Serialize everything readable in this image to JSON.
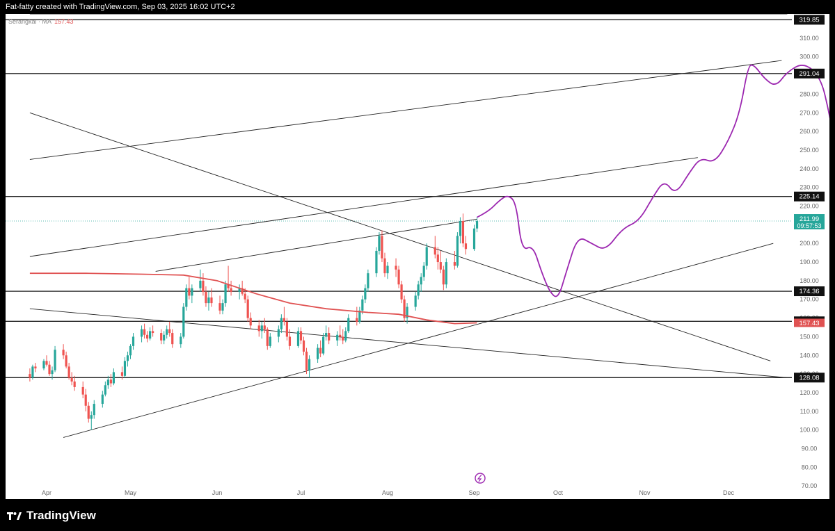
{
  "header": {
    "attribution": "Fat-fatty created with TradingView.com, Sep 03, 2025 16:02 UTC+2"
  },
  "legend": {
    "label": "Serangkai · MA",
    "value": "157.43"
  },
  "brand": {
    "name": "TradingView"
  },
  "colors": {
    "up": "#26a69a",
    "down": "#ef5350",
    "ma": "#e05252",
    "projection": "#9c27b0",
    "line": "#222222",
    "price_label": "#26a69a"
  },
  "chart_data": {
    "type": "candlestick",
    "x_tick_labels": [
      "Apr",
      "May",
      "Jun",
      "Jul",
      "Aug",
      "Sep",
      "Oct",
      "Nov",
      "Dec"
    ],
    "y_tick_labels": [
      "70.00",
      "80.00",
      "90.00",
      "100.00",
      "110.00",
      "120.00",
      "130.00",
      "140.00",
      "150.00",
      "160.00",
      "170.00",
      "180.00",
      "190.00",
      "200.00",
      "210.00",
      "220.00",
      "230.00",
      "240.00",
      "250.00",
      "260.00",
      "270.00",
      "280.00",
      "290.00",
      "300.00",
      "310.00"
    ],
    "ylim": [
      63,
      323
    ],
    "horizontal_levels": [
      {
        "price": 319.85,
        "label": "319.85"
      },
      {
        "price": 291.04,
        "label": "291.04"
      },
      {
        "price": 225.14,
        "label": "225.14"
      },
      {
        "price": 174.36,
        "label": "174.36"
      },
      {
        "price": 158.25,
        "label": "158.25"
      },
      {
        "price": 128.08,
        "label": "128.08"
      }
    ],
    "last_price": {
      "value": "211.99",
      "countdown": "09:57:53"
    },
    "ma": {
      "name": "MA",
      "value": "157.43"
    },
    "trendlines": [
      {
        "from": [
          "2025-03-26",
          245
        ],
        "to": [
          "2025-12-20",
          298
        ]
      },
      {
        "from": [
          "2025-03-26",
          193
        ],
        "to": [
          "2025-11-20",
          246
        ]
      },
      {
        "from": [
          "2025-05-10",
          185
        ],
        "to": [
          "2025-09-02",
          213
        ]
      },
      {
        "from": [
          "2025-04-07",
          96
        ],
        "to": [
          "2025-12-17",
          200
        ]
      },
      {
        "from": [
          "2025-03-26",
          165
        ],
        "to": [
          "2025-12-22",
          128
        ]
      },
      {
        "from": [
          "2025-03-26",
          270
        ],
        "to": [
          "2025-12-16",
          137
        ]
      },
      {
        "from": [
          "2025-03-26",
          323
        ],
        "to": [
          "2025-12-22",
          323
        ]
      }
    ],
    "ma_series": [
      [
        "2025-03-26",
        184
      ],
      [
        "2025-04-15",
        184
      ],
      [
        "2025-05-05",
        183.5
      ],
      [
        "2025-05-20",
        183
      ],
      [
        "2025-06-01",
        180
      ],
      [
        "2025-06-15",
        173
      ],
      [
        "2025-06-27",
        168
      ],
      [
        "2025-07-10",
        165
      ],
      [
        "2025-07-25",
        163
      ],
      [
        "2025-08-05",
        162
      ],
      [
        "2025-08-15",
        159
      ],
      [
        "2025-08-25",
        157
      ],
      [
        "2025-09-02",
        157.43
      ]
    ],
    "projection": [
      [
        "2025-09-02",
        214
      ],
      [
        "2025-09-06",
        217
      ],
      [
        "2025-09-10",
        223
      ],
      [
        "2025-09-13",
        226
      ],
      [
        "2025-09-16",
        222
      ],
      [
        "2025-09-18",
        196
      ],
      [
        "2025-09-22",
        199
      ],
      [
        "2025-09-25",
        185
      ],
      [
        "2025-09-28",
        174
      ],
      [
        "2025-10-01",
        170
      ],
      [
        "2025-10-04",
        185
      ],
      [
        "2025-10-08",
        204
      ],
      [
        "2025-10-13",
        200
      ],
      [
        "2025-10-18",
        196
      ],
      [
        "2025-10-24",
        208
      ],
      [
        "2025-10-30",
        212
      ],
      [
        "2025-11-04",
        225
      ],
      [
        "2025-11-08",
        234
      ],
      [
        "2025-11-12",
        226
      ],
      [
        "2025-11-17",
        238
      ],
      [
        "2025-11-21",
        246
      ],
      [
        "2025-11-26",
        243
      ],
      [
        "2025-12-01",
        255
      ],
      [
        "2025-12-05",
        270
      ],
      [
        "2025-12-08",
        295
      ],
      [
        "2025-12-10",
        296
      ],
      [
        "2025-12-14",
        288
      ],
      [
        "2025-12-18",
        284
      ],
      [
        "2025-12-22",
        292
      ],
      [
        "2025-12-28",
        297
      ],
      [
        "2026-01-03",
        289
      ],
      [
        "2026-01-06",
        270
      ],
      [
        "2026-01-08",
        253
      ]
    ],
    "candles": [
      [
        "2025-03-26",
        130,
        133,
        126,
        128
      ],
      [
        "2025-03-27",
        128,
        135,
        127,
        134
      ],
      [
        "2025-03-28",
        134,
        136,
        131,
        133
      ],
      [
        "2025-03-31",
        133,
        138,
        132,
        137
      ],
      [
        "2025-04-01",
        137,
        140,
        134,
        135
      ],
      [
        "2025-04-02",
        135,
        137,
        129,
        130
      ],
      [
        "2025-04-03",
        130,
        134,
        127,
        132
      ],
      [
        "2025-04-04",
        132,
        145,
        131,
        143
      ],
      [
        "2025-04-07",
        143,
        146,
        138,
        140
      ],
      [
        "2025-04-08",
        140,
        142,
        133,
        134
      ],
      [
        "2025-04-09",
        134,
        136,
        127,
        128
      ],
      [
        "2025-04-10",
        128,
        131,
        124,
        126
      ],
      [
        "2025-04-11",
        126,
        129,
        121,
        123
      ],
      [
        "2025-04-14",
        123,
        126,
        117,
        119
      ],
      [
        "2025-04-15",
        119,
        122,
        110,
        113
      ],
      [
        "2025-04-16",
        113,
        115,
        104,
        106
      ],
      [
        "2025-04-17",
        106,
        110,
        100,
        108
      ],
      [
        "2025-04-18",
        108,
        116,
        106,
        114
      ],
      [
        "2025-04-21",
        114,
        121,
        112,
        119
      ],
      [
        "2025-04-22",
        119,
        126,
        118,
        124
      ],
      [
        "2025-04-23",
        124,
        129,
        122,
        127
      ],
      [
        "2025-04-24",
        127,
        130,
        123,
        125
      ],
      [
        "2025-04-25",
        125,
        133,
        124,
        131
      ],
      [
        "2025-04-28",
        131,
        134,
        127,
        129
      ],
      [
        "2025-04-29",
        129,
        139,
        128,
        137
      ],
      [
        "2025-04-30",
        137,
        142,
        134,
        140
      ],
      [
        "2025-05-01",
        140,
        146,
        138,
        145
      ],
      [
        "2025-05-02",
        145,
        152,
        143,
        150
      ],
      [
        "2025-05-05",
        150,
        156,
        147,
        154
      ],
      [
        "2025-05-06",
        154,
        157,
        149,
        151
      ],
      [
        "2025-05-07",
        151,
        153,
        147,
        149
      ],
      [
        "2025-05-08",
        149,
        155,
        148,
        153
      ],
      [
        "2025-05-09",
        153,
        156,
        150,
        152
      ],
      [
        "2025-05-12",
        152,
        154,
        146,
        148
      ],
      [
        "2025-05-13",
        148,
        153,
        146,
        151
      ],
      [
        "2025-05-14",
        151,
        156,
        149,
        154
      ],
      [
        "2025-05-15",
        154,
        158,
        150,
        152
      ],
      [
        "2025-05-16",
        152,
        154,
        144,
        146
      ],
      [
        "2025-05-19",
        146,
        152,
        144,
        150
      ],
      [
        "2025-05-20",
        150,
        168,
        149,
        166
      ],
      [
        "2025-05-21",
        166,
        178,
        164,
        176
      ],
      [
        "2025-05-22",
        176,
        182,
        170,
        172
      ],
      [
        "2025-05-23",
        172,
        178,
        168,
        176
      ],
      [
        "2025-05-26",
        176,
        186,
        174,
        180
      ],
      [
        "2025-05-27",
        180,
        184,
        172,
        174
      ],
      [
        "2025-05-28",
        174,
        177,
        166,
        168
      ],
      [
        "2025-05-29",
        168,
        174,
        164,
        171
      ],
      [
        "2025-05-30",
        171,
        176,
        166,
        168
      ],
      [
        "2025-06-02",
        168,
        172,
        162,
        164
      ],
      [
        "2025-06-03",
        164,
        170,
        162,
        168
      ],
      [
        "2025-06-04",
        168,
        180,
        166,
        178
      ],
      [
        "2025-06-05",
        178,
        188,
        174,
        176
      ],
      [
        "2025-06-06",
        176,
        180,
        172,
        174
      ],
      [
        "2025-06-09",
        174,
        178,
        170,
        176
      ],
      [
        "2025-06-10",
        176,
        180,
        172,
        173
      ],
      [
        "2025-06-11",
        173,
        176,
        168,
        170
      ],
      [
        "2025-06-12",
        170,
        172,
        158,
        160
      ],
      [
        "2025-06-13",
        160,
        163,
        154,
        156
      ],
      [
        "2025-06-16",
        156,
        159,
        150,
        153
      ],
      [
        "2025-06-17",
        153,
        158,
        149,
        156
      ],
      [
        "2025-06-18",
        156,
        160,
        152,
        154
      ],
      [
        "2025-06-19",
        154,
        155,
        143,
        145
      ],
      [
        "2025-06-20",
        145,
        152,
        144,
        150
      ],
      [
        "2025-06-23",
        150,
        156,
        147,
        154
      ],
      [
        "2025-06-24",
        154,
        162,
        152,
        160
      ],
      [
        "2025-06-25",
        160,
        166,
        156,
        158
      ],
      [
        "2025-06-26",
        158,
        160,
        148,
        150
      ],
      [
        "2025-06-27",
        150,
        154,
        143,
        145
      ],
      [
        "2025-06-30",
        145,
        155,
        144,
        153
      ],
      [
        "2025-07-01",
        153,
        155,
        146,
        148
      ],
      [
        "2025-07-02",
        148,
        150,
        140,
        142
      ],
      [
        "2025-07-03",
        142,
        144,
        130,
        132
      ],
      [
        "2025-07-04",
        132,
        140,
        128,
        138
      ],
      [
        "2025-07-07",
        138,
        146,
        136,
        144
      ],
      [
        "2025-07-08",
        144,
        148,
        139,
        141
      ],
      [
        "2025-07-09",
        141,
        152,
        140,
        150
      ],
      [
        "2025-07-10",
        150,
        156,
        148,
        152
      ],
      [
        "2025-07-11",
        152,
        155,
        146,
        148
      ],
      [
        "2025-07-14",
        148,
        153,
        145,
        151
      ],
      [
        "2025-07-15",
        151,
        156,
        148,
        150
      ],
      [
        "2025-07-16",
        150,
        154,
        146,
        148
      ],
      [
        "2025-07-17",
        148,
        155,
        147,
        153
      ],
      [
        "2025-07-18",
        153,
        162,
        152,
        160
      ],
      [
        "2025-07-21",
        160,
        166,
        156,
        158
      ],
      [
        "2025-07-22",
        158,
        166,
        157,
        164
      ],
      [
        "2025-07-23",
        164,
        172,
        162,
        170
      ],
      [
        "2025-07-24",
        170,
        178,
        168,
        176
      ],
      [
        "2025-07-25",
        176,
        186,
        174,
        184
      ],
      [
        "2025-07-28",
        184,
        198,
        182,
        196
      ],
      [
        "2025-07-29",
        196,
        206,
        194,
        204
      ],
      [
        "2025-07-30",
        204,
        207,
        190,
        192
      ],
      [
        "2025-07-31",
        192,
        195,
        182,
        184
      ],
      [
        "2025-08-01",
        184,
        190,
        181,
        188
      ],
      [
        "2025-08-04",
        188,
        192,
        182,
        186
      ],
      [
        "2025-08-05",
        186,
        188,
        176,
        178
      ],
      [
        "2025-08-06",
        178,
        180,
        168,
        170
      ],
      [
        "2025-08-07",
        170,
        172,
        158,
        160
      ],
      [
        "2025-08-08",
        160,
        168,
        157,
        166
      ],
      [
        "2025-08-11",
        166,
        174,
        164,
        172
      ],
      [
        "2025-08-12",
        172,
        180,
        170,
        178
      ],
      [
        "2025-08-13",
        178,
        184,
        174,
        182
      ],
      [
        "2025-08-14",
        182,
        190,
        180,
        188
      ],
      [
        "2025-08-15",
        188,
        200,
        186,
        198
      ],
      [
        "2025-08-18",
        198,
        204,
        192,
        194
      ],
      [
        "2025-08-19",
        194,
        198,
        186,
        190
      ],
      [
        "2025-08-20",
        190,
        196,
        184,
        186
      ],
      [
        "2025-08-21",
        186,
        188,
        175,
        178
      ],
      [
        "2025-08-22",
        178,
        192,
        176,
        190
      ],
      [
        "2025-08-25",
        190,
        196,
        186,
        188
      ],
      [
        "2025-08-26",
        188,
        206,
        187,
        204
      ],
      [
        "2025-08-27",
        204,
        214,
        200,
        212
      ],
      [
        "2025-08-28",
        212,
        216,
        198,
        200
      ],
      [
        "2025-08-29",
        200,
        204,
        194,
        197
      ],
      [
        "2025-09-01",
        197,
        210,
        196,
        208
      ],
      [
        "2025-09-02",
        208,
        214,
        206,
        212
      ]
    ]
  }
}
